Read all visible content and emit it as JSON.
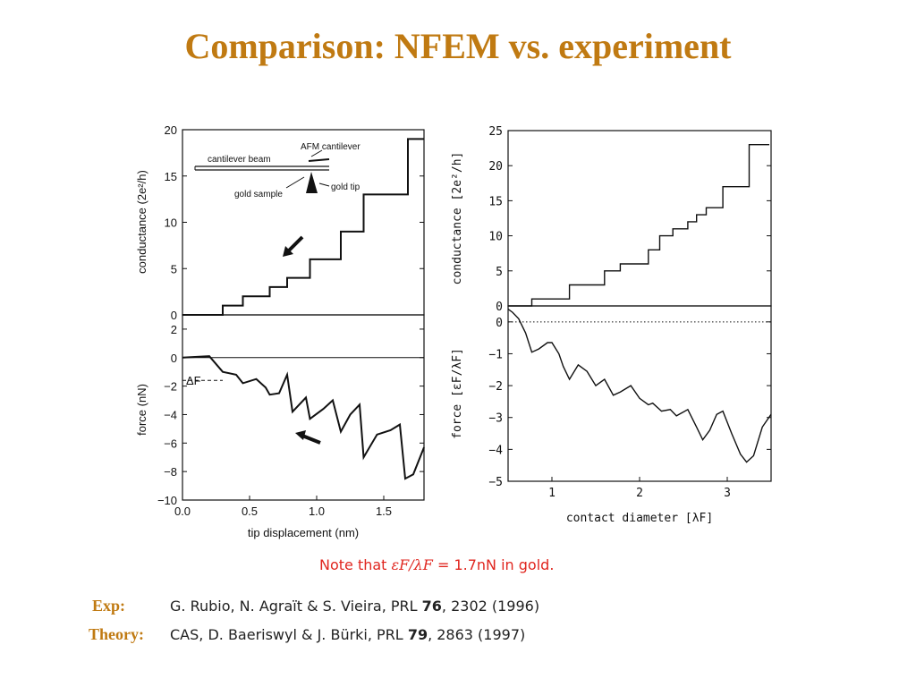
{
  "slide": {
    "title": "Comparison: NFEM vs. experiment",
    "note": {
      "prefix": "Note that ",
      "math": "εF/λF",
      "equals": " = ",
      "suffix": "1.7nN in gold."
    },
    "refs": [
      {
        "label": "Exp:",
        "authors": "G. Rubio, N. Agraït & S. Vieira, PRL ",
        "volume": "76",
        "rest": ", 2302 (1996)"
      },
      {
        "label": "Theory:",
        "authors": "CAS, D. Baeriswyl & J. Bürki, PRL ",
        "volume": "79",
        "rest": ", 2863 (1997)"
      }
    ]
  },
  "chart_data": [
    {
      "id": "exp-conductance",
      "type": "line",
      "xlabel": "",
      "ylabel": "conductance (2e²/h)",
      "xlim": [
        0,
        1.8
      ],
      "ylim": [
        0,
        20
      ],
      "yticks": [
        "0",
        "5",
        "10",
        "15",
        "20"
      ],
      "inset_labels": [
        "AFM cantilever",
        "cantilever beam",
        "gold tip",
        "gold sample"
      ],
      "series": [
        {
          "x": [
            0,
            0.3,
            0.3,
            0.45,
            0.45,
            0.65,
            0.65,
            0.78,
            0.78,
            0.95,
            0.95,
            1.18,
            1.18,
            1.35,
            1.35,
            1.68,
            1.68,
            1.8
          ],
          "values": [
            0,
            0,
            1,
            1,
            2,
            2,
            3,
            3,
            4,
            4,
            6,
            6,
            9,
            9,
            13,
            13,
            19,
            19
          ]
        }
      ]
    },
    {
      "id": "exp-force",
      "type": "line",
      "xlabel": "tip displacement (nm)",
      "ylabel": "force (nN)",
      "xlim": [
        0,
        1.8
      ],
      "ylim": [
        -10,
        3
      ],
      "yticks": [
        "2",
        "0",
        "−2",
        "−4",
        "−6",
        "−8",
        "−10"
      ],
      "xticks": [
        "0.0",
        "0.5",
        "1.0",
        "1.5"
      ],
      "annotation": "ΔF",
      "series": [
        {
          "x": [
            0,
            0.2,
            0.3,
            0.4,
            0.45,
            0.55,
            0.62,
            0.65,
            0.72,
            0.78,
            0.82,
            0.92,
            0.95,
            1.05,
            1.12,
            1.18,
            1.25,
            1.32,
            1.35,
            1.45,
            1.55,
            1.62,
            1.66,
            1.72,
            1.8
          ],
          "values": [
            0,
            0.1,
            -1.0,
            -1.2,
            -1.8,
            -1.5,
            -2.1,
            -2.6,
            -2.5,
            -1.2,
            -3.8,
            -2.8,
            -4.3,
            -3.6,
            -3.0,
            -5.2,
            -4.0,
            -3.3,
            -7.0,
            -5.4,
            -5.1,
            -4.7,
            -8.5,
            -8.2,
            -6.3
          ]
        }
      ]
    },
    {
      "id": "theory-conductance",
      "type": "line",
      "xlabel": "",
      "ylabel": "conductance [2e²/h]",
      "xlim": [
        0.5,
        3.5
      ],
      "ylim": [
        0,
        25
      ],
      "yticks": [
        "0",
        "5",
        "10",
        "15",
        "20",
        "25"
      ],
      "series": [
        {
          "x": [
            0.5,
            0.77,
            0.77,
            1.2,
            1.2,
            1.6,
            1.6,
            1.78,
            1.78,
            2.1,
            2.1,
            2.23,
            2.23,
            2.38,
            2.38,
            2.55,
            2.55,
            2.65,
            2.65,
            2.76,
            2.76,
            2.95,
            2.95,
            3.25,
            3.25,
            3.48
          ],
          "values": [
            0,
            0,
            1,
            1,
            3,
            3,
            5,
            5,
            6,
            6,
            8,
            8,
            10,
            10,
            11,
            11,
            12,
            12,
            13,
            13,
            14,
            14,
            17,
            17,
            23,
            23
          ]
        }
      ]
    },
    {
      "id": "theory-force",
      "type": "line",
      "xlabel": "contact diameter [λF]",
      "ylabel": "force [εF/λF]",
      "xlim": [
        0.5,
        3.5
      ],
      "ylim": [
        -5,
        0.5
      ],
      "yticks": [
        "0",
        "−1",
        "−2",
        "−3",
        "−4",
        "−5"
      ],
      "xticks": [
        "1",
        "2",
        "3"
      ],
      "series": [
        {
          "x": [
            0.5,
            0.55,
            0.62,
            0.7,
            0.77,
            0.85,
            0.95,
            1.0,
            1.08,
            1.13,
            1.2,
            1.3,
            1.4,
            1.5,
            1.6,
            1.7,
            1.78,
            1.9,
            2.0,
            2.1,
            2.15,
            2.25,
            2.35,
            2.42,
            2.55,
            2.65,
            2.72,
            2.8,
            2.88,
            2.95,
            3.05,
            3.15,
            3.22,
            3.3,
            3.4,
            3.5
          ],
          "values": [
            0.4,
            0.3,
            0.1,
            -0.35,
            -0.95,
            -0.85,
            -0.65,
            -0.65,
            -1.0,
            -1.4,
            -1.8,
            -1.35,
            -1.55,
            -2.0,
            -1.8,
            -2.3,
            -2.2,
            -2.0,
            -2.4,
            -2.6,
            -2.55,
            -2.8,
            -2.75,
            -2.95,
            -2.75,
            -3.3,
            -3.7,
            -3.4,
            -2.9,
            -2.8,
            -3.5,
            -4.15,
            -4.4,
            -4.2,
            -3.3,
            -2.9
          ]
        }
      ]
    }
  ]
}
